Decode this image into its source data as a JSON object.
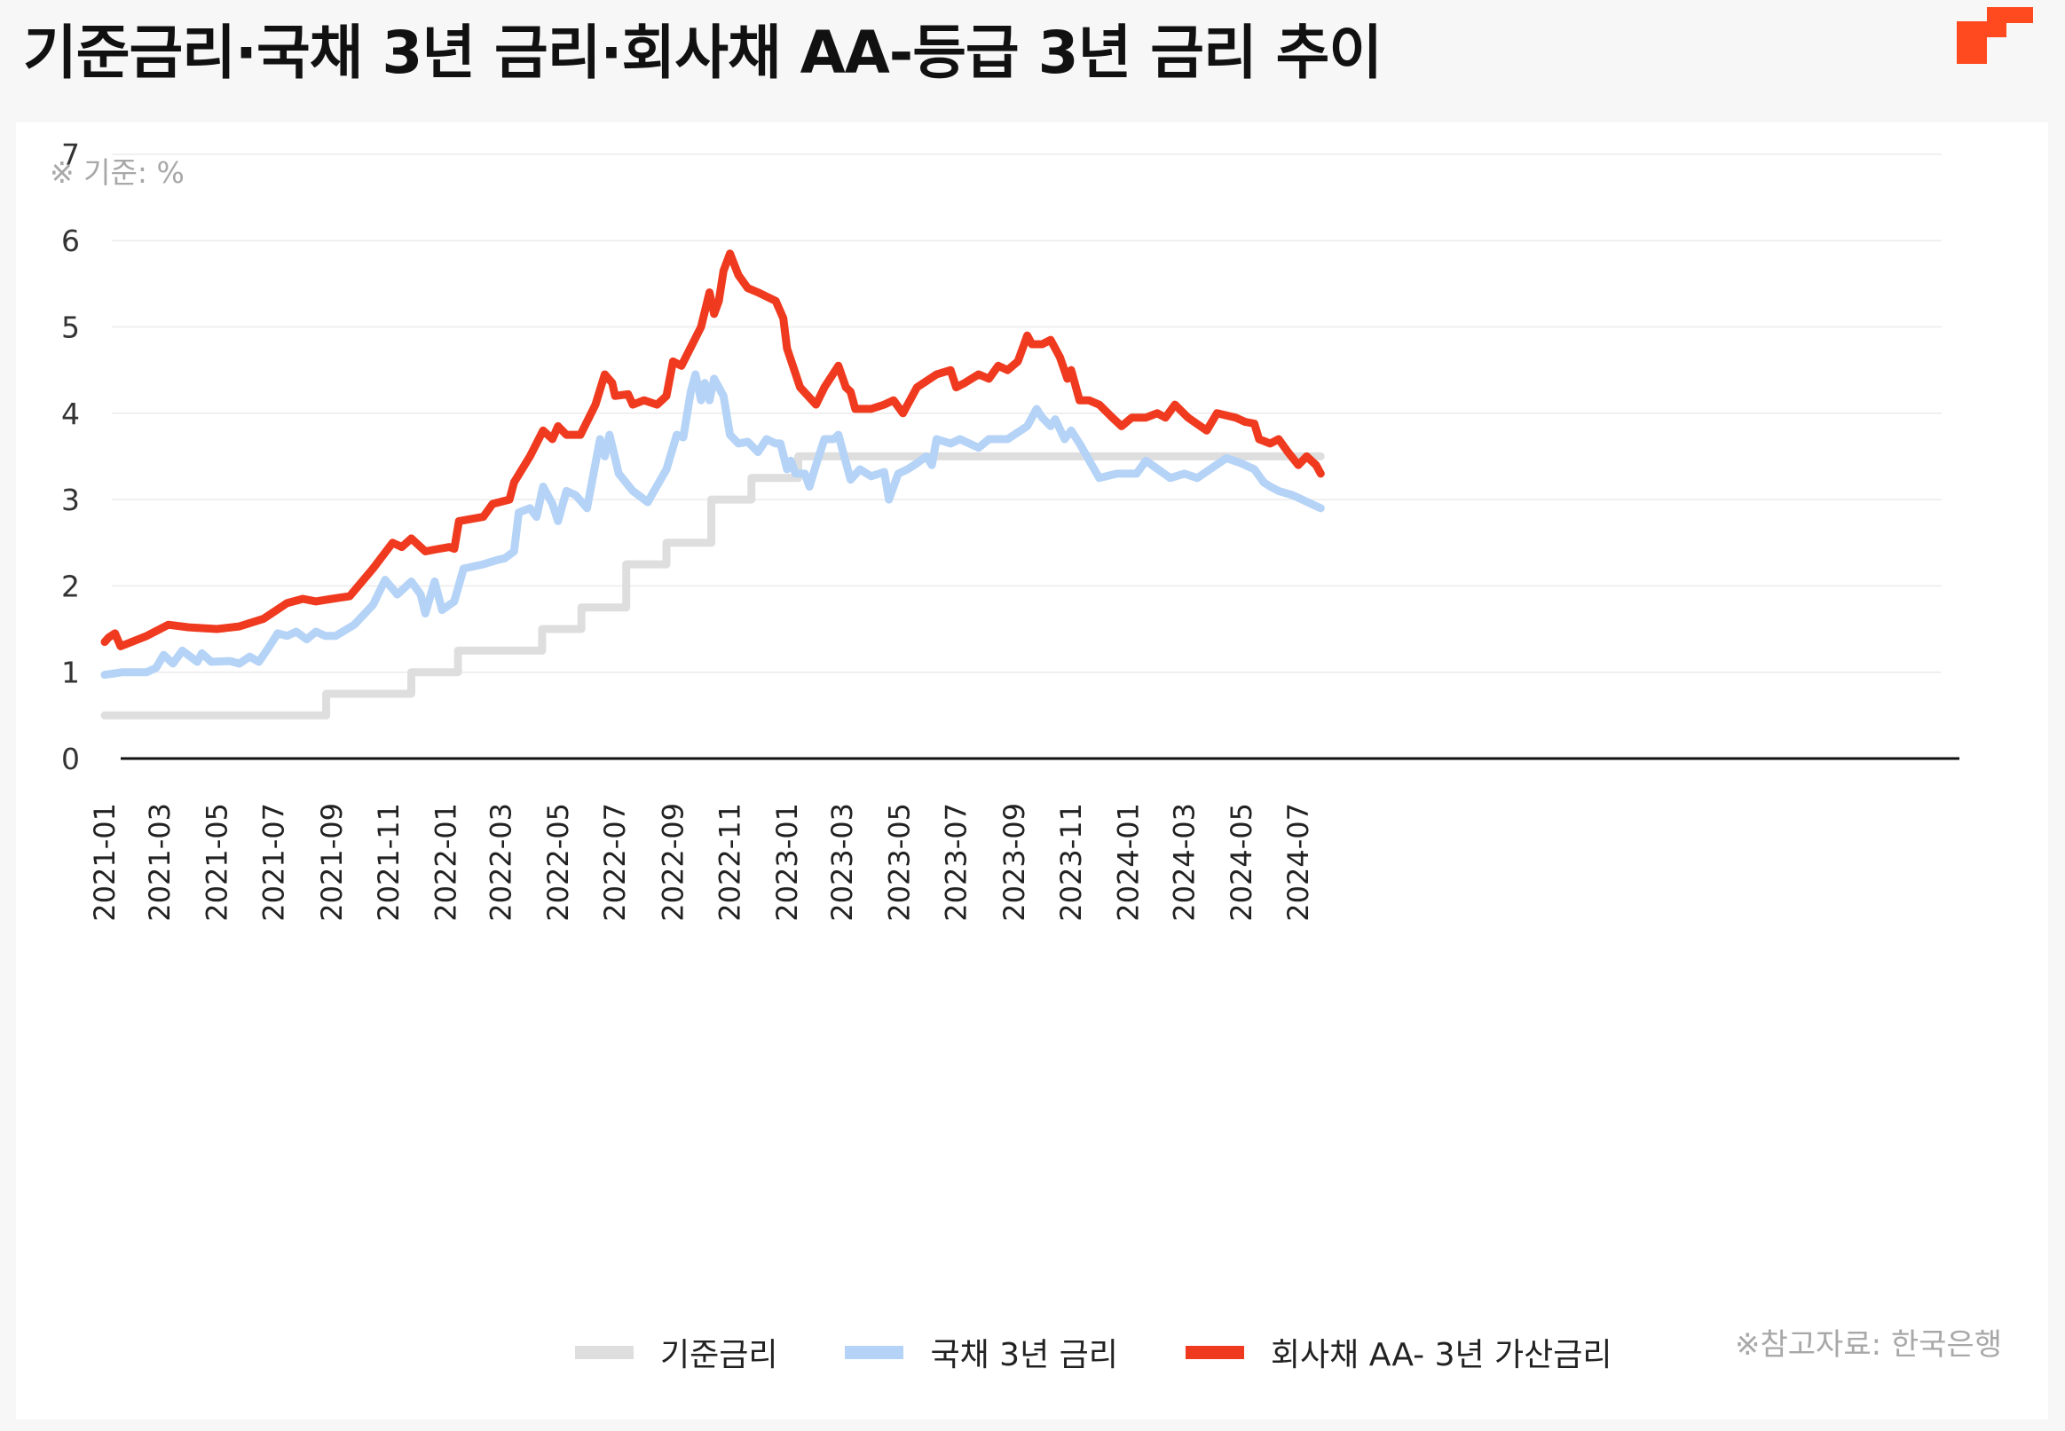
{
  "header": {
    "title": "기준금리·국채 3년 금리·회사채 AA-등급 3년 금리 추이"
  },
  "unit_note": "※ 기준: %",
  "source_note": "※참고자료: 한국은행",
  "colors": {
    "base": "#dedede",
    "gov": "#b5d3f6",
    "corp": "#ef3a1f",
    "accent": "#ff4a1f"
  },
  "chart_data": {
    "type": "line",
    "title": "기준금리·국채 3년 금리·회사채 AA-등급 3년 금리 추이",
    "ylim": [
      0,
      7
    ],
    "y_ticks": [
      0,
      1,
      2,
      3,
      4,
      5,
      6,
      7
    ],
    "xlim": [
      "2021-01",
      "2024-07"
    ],
    "x_tick_labels": [
      "2021-01",
      "2021-03",
      "2021-05",
      "2021-07",
      "2021-09",
      "2021-11",
      "2022-01",
      "2022-03",
      "2022-05",
      "2022-07",
      "2022-09",
      "2022-11",
      "2023-01",
      "2023-03",
      "2023-05",
      "2023-07",
      "2023-09",
      "2023-11",
      "2024-01",
      "2024-03",
      "2024-05",
      "2024-07"
    ],
    "grid": true,
    "legend_position": "bottom",
    "series": [
      {
        "name": "기준금리",
        "color_key": "base",
        "points": [
          [
            "2021-01-01",
            0.5
          ],
          [
            "2021-08-26",
            0.5
          ],
          [
            "2021-08-26",
            0.75
          ],
          [
            "2021-11-25",
            0.75
          ],
          [
            "2021-11-25",
            1.0
          ],
          [
            "2022-01-14",
            1.0
          ],
          [
            "2022-01-14",
            1.25
          ],
          [
            "2022-04-14",
            1.25
          ],
          [
            "2022-04-14",
            1.5
          ],
          [
            "2022-05-26",
            1.5
          ],
          [
            "2022-05-26",
            1.75
          ],
          [
            "2022-07-13",
            1.75
          ],
          [
            "2022-07-13",
            2.25
          ],
          [
            "2022-08-25",
            2.25
          ],
          [
            "2022-08-25",
            2.5
          ],
          [
            "2022-10-12",
            2.5
          ],
          [
            "2022-10-12",
            3.0
          ],
          [
            "2022-11-24",
            3.0
          ],
          [
            "2022-11-24",
            3.25
          ],
          [
            "2023-01-13",
            3.25
          ],
          [
            "2023-01-13",
            3.5
          ],
          [
            "2024-07-25",
            3.5
          ]
        ]
      },
      {
        "name": "국채 3년 금리",
        "color_key": "gov",
        "points": [
          [
            "2021-01-01",
            0.97
          ],
          [
            "2021-01-20",
            1.0
          ],
          [
            "2021-02-15",
            1.0
          ],
          [
            "2021-02-25",
            1.05
          ],
          [
            "2021-03-05",
            1.2
          ],
          [
            "2021-03-15",
            1.1
          ],
          [
            "2021-03-25",
            1.25
          ],
          [
            "2021-04-10",
            1.12
          ],
          [
            "2021-04-15",
            1.22
          ],
          [
            "2021-04-25",
            1.12
          ],
          [
            "2021-05-15",
            1.13
          ],
          [
            "2021-05-25",
            1.1
          ],
          [
            "2021-06-05",
            1.18
          ],
          [
            "2021-06-15",
            1.12
          ],
          [
            "2021-06-25",
            1.28
          ],
          [
            "2021-07-05",
            1.45
          ],
          [
            "2021-07-15",
            1.42
          ],
          [
            "2021-07-25",
            1.47
          ],
          [
            "2021-08-05",
            1.38
          ],
          [
            "2021-08-15",
            1.47
          ],
          [
            "2021-08-25",
            1.42
          ],
          [
            "2021-09-05",
            1.42
          ],
          [
            "2021-09-25",
            1.55
          ],
          [
            "2021-10-15",
            1.78
          ],
          [
            "2021-10-28",
            2.07
          ],
          [
            "2021-11-10",
            1.9
          ],
          [
            "2021-11-25",
            2.05
          ],
          [
            "2021-12-05",
            1.9
          ],
          [
            "2021-12-10",
            1.68
          ],
          [
            "2021-12-20",
            2.05
          ],
          [
            "2021-12-28",
            1.72
          ],
          [
            "2022-01-10",
            1.82
          ],
          [
            "2022-01-20",
            2.2
          ],
          [
            "2022-02-10",
            2.25
          ],
          [
            "2022-02-25",
            2.3
          ],
          [
            "2022-03-05",
            2.32
          ],
          [
            "2022-03-15",
            2.4
          ],
          [
            "2022-03-20",
            2.85
          ],
          [
            "2022-04-01",
            2.9
          ],
          [
            "2022-04-08",
            2.8
          ],
          [
            "2022-04-15",
            3.15
          ],
          [
            "2022-04-25",
            2.95
          ],
          [
            "2022-05-01",
            2.75
          ],
          [
            "2022-05-10",
            3.1
          ],
          [
            "2022-05-20",
            3.05
          ],
          [
            "2022-06-01",
            2.9
          ],
          [
            "2022-06-15",
            3.7
          ],
          [
            "2022-06-20",
            3.5
          ],
          [
            "2022-06-25",
            3.75
          ],
          [
            "2022-07-05",
            3.3
          ],
          [
            "2022-07-20",
            3.1
          ],
          [
            "2022-08-05",
            2.97
          ],
          [
            "2022-08-25",
            3.35
          ],
          [
            "2022-09-05",
            3.75
          ],
          [
            "2022-09-12",
            3.72
          ],
          [
            "2022-09-20",
            4.25
          ],
          [
            "2022-09-25",
            4.45
          ],
          [
            "2022-10-01",
            4.15
          ],
          [
            "2022-10-05",
            4.35
          ],
          [
            "2022-10-10",
            4.15
          ],
          [
            "2022-10-15",
            4.4
          ],
          [
            "2022-10-25",
            4.2
          ],
          [
            "2022-11-01",
            3.75
          ],
          [
            "2022-11-10",
            3.65
          ],
          [
            "2022-11-20",
            3.67
          ],
          [
            "2022-12-01",
            3.55
          ],
          [
            "2022-12-10",
            3.7
          ],
          [
            "2022-12-20",
            3.65
          ],
          [
            "2022-12-25",
            3.65
          ],
          [
            "2023-01-01",
            3.35
          ],
          [
            "2023-01-05",
            3.45
          ],
          [
            "2023-01-10",
            3.3
          ],
          [
            "2023-01-20",
            3.3
          ],
          [
            "2023-01-25",
            3.15
          ],
          [
            "2023-02-01",
            3.4
          ],
          [
            "2023-02-10",
            3.7
          ],
          [
            "2023-02-20",
            3.7
          ],
          [
            "2023-02-25",
            3.75
          ],
          [
            "2023-03-10",
            3.23
          ],
          [
            "2023-03-20",
            3.35
          ],
          [
            "2023-04-01",
            3.27
          ],
          [
            "2023-04-15",
            3.32
          ],
          [
            "2023-04-20",
            3.0
          ],
          [
            "2023-04-30",
            3.3
          ],
          [
            "2023-05-10",
            3.35
          ],
          [
            "2023-05-20",
            3.42
          ],
          [
            "2023-05-30",
            3.5
          ],
          [
            "2023-06-05",
            3.4
          ],
          [
            "2023-06-10",
            3.7
          ],
          [
            "2023-06-25",
            3.65
          ],
          [
            "2023-07-05",
            3.7
          ],
          [
            "2023-07-25",
            3.6
          ],
          [
            "2023-08-05",
            3.7
          ],
          [
            "2023-08-25",
            3.7
          ],
          [
            "2023-09-01",
            3.75
          ],
          [
            "2023-09-15",
            3.85
          ],
          [
            "2023-09-25",
            4.05
          ],
          [
            "2023-10-01",
            3.95
          ],
          [
            "2023-10-10",
            3.85
          ],
          [
            "2023-10-15",
            3.93
          ],
          [
            "2023-10-25",
            3.7
          ],
          [
            "2023-11-01",
            3.8
          ],
          [
            "2023-11-10",
            3.65
          ],
          [
            "2023-12-01",
            3.25
          ],
          [
            "2023-12-20",
            3.3
          ],
          [
            "2024-01-10",
            3.3
          ],
          [
            "2024-01-20",
            3.45
          ],
          [
            "2024-02-15",
            3.25
          ],
          [
            "2024-03-01",
            3.3
          ],
          [
            "2024-03-15",
            3.25
          ],
          [
            "2024-04-15",
            3.48
          ],
          [
            "2024-05-01",
            3.42
          ],
          [
            "2024-05-15",
            3.35
          ],
          [
            "2024-05-25",
            3.2
          ],
          [
            "2024-06-01",
            3.15
          ],
          [
            "2024-06-10",
            3.1
          ],
          [
            "2024-06-25",
            3.05
          ],
          [
            "2024-07-05",
            3.0
          ],
          [
            "2024-07-15",
            2.95
          ],
          [
            "2024-07-25",
            2.9
          ]
        ]
      },
      {
        "name": "회사채 AA- 3년 가산금리",
        "color_key": "corp",
        "points": [
          [
            "2021-01-01",
            1.35
          ],
          [
            "2021-01-05",
            1.4
          ],
          [
            "2021-01-12",
            1.45
          ],
          [
            "2021-01-18",
            1.3
          ],
          [
            "2021-02-15",
            1.42
          ],
          [
            "2021-03-10",
            1.55
          ],
          [
            "2021-04-01",
            1.52
          ],
          [
            "2021-05-01",
            1.5
          ],
          [
            "2021-05-25",
            1.53
          ],
          [
            "2021-06-20",
            1.62
          ],
          [
            "2021-07-15",
            1.8
          ],
          [
            "2021-08-01",
            1.85
          ],
          [
            "2021-08-15",
            1.82
          ],
          [
            "2021-09-01",
            1.85
          ],
          [
            "2021-09-20",
            1.88
          ],
          [
            "2021-10-15",
            2.2
          ],
          [
            "2021-11-05",
            2.5
          ],
          [
            "2021-11-15",
            2.45
          ],
          [
            "2021-11-25",
            2.55
          ],
          [
            "2021-12-10",
            2.4
          ],
          [
            "2021-12-20",
            2.42
          ],
          [
            "2022-01-05",
            2.45
          ],
          [
            "2022-01-10",
            2.43
          ],
          [
            "2022-01-15",
            2.75
          ],
          [
            "2022-02-10",
            2.8
          ],
          [
            "2022-02-20",
            2.95
          ],
          [
            "2022-03-10",
            3.0
          ],
          [
            "2022-03-15",
            3.2
          ],
          [
            "2022-04-01",
            3.5
          ],
          [
            "2022-04-15",
            3.8
          ],
          [
            "2022-04-25",
            3.7
          ],
          [
            "2022-05-01",
            3.85
          ],
          [
            "2022-05-10",
            3.75
          ],
          [
            "2022-05-25",
            3.75
          ],
          [
            "2022-06-10",
            4.1
          ],
          [
            "2022-06-20",
            4.45
          ],
          [
            "2022-06-28",
            4.35
          ],
          [
            "2022-07-01",
            4.2
          ],
          [
            "2022-07-15",
            4.22
          ],
          [
            "2022-07-20",
            4.1
          ],
          [
            "2022-08-01",
            4.15
          ],
          [
            "2022-08-15",
            4.1
          ],
          [
            "2022-08-25",
            4.2
          ],
          [
            "2022-09-01",
            4.6
          ],
          [
            "2022-09-10",
            4.55
          ],
          [
            "2022-10-01",
            5.0
          ],
          [
            "2022-10-10",
            5.4
          ],
          [
            "2022-10-15",
            5.15
          ],
          [
            "2022-10-20",
            5.3
          ],
          [
            "2022-10-25",
            5.65
          ],
          [
            "2022-11-01",
            5.85
          ],
          [
            "2022-11-10",
            5.6
          ],
          [
            "2022-11-20",
            5.45
          ],
          [
            "2022-12-01",
            5.4
          ],
          [
            "2022-12-20",
            5.3
          ],
          [
            "2022-12-28",
            5.1
          ],
          [
            "2023-01-01",
            4.75
          ],
          [
            "2023-01-15",
            4.3
          ],
          [
            "2023-02-01",
            4.1
          ],
          [
            "2023-02-10",
            4.3
          ],
          [
            "2023-02-25",
            4.55
          ],
          [
            "2023-03-05",
            4.3
          ],
          [
            "2023-03-10",
            4.25
          ],
          [
            "2023-03-15",
            4.05
          ],
          [
            "2023-04-01",
            4.05
          ],
          [
            "2023-04-15",
            4.1
          ],
          [
            "2023-04-25",
            4.15
          ],
          [
            "2023-05-05",
            4.0
          ],
          [
            "2023-05-20",
            4.3
          ],
          [
            "2023-06-10",
            4.45
          ],
          [
            "2023-06-25",
            4.5
          ],
          [
            "2023-07-01",
            4.3
          ],
          [
            "2023-07-10",
            4.35
          ],
          [
            "2023-07-25",
            4.45
          ],
          [
            "2023-08-05",
            4.4
          ],
          [
            "2023-08-15",
            4.55
          ],
          [
            "2023-08-25",
            4.5
          ],
          [
            "2023-09-05",
            4.6
          ],
          [
            "2023-09-15",
            4.9
          ],
          [
            "2023-09-20",
            4.8
          ],
          [
            "2023-10-01",
            4.8
          ],
          [
            "2023-10-10",
            4.85
          ],
          [
            "2023-10-20",
            4.65
          ],
          [
            "2023-10-28",
            4.4
          ],
          [
            "2023-11-01",
            4.5
          ],
          [
            "2023-11-10",
            4.15
          ],
          [
            "2023-11-20",
            4.15
          ],
          [
            "2023-12-01",
            4.1
          ],
          [
            "2023-12-15",
            3.95
          ],
          [
            "2023-12-25",
            3.85
          ],
          [
            "2024-01-05",
            3.95
          ],
          [
            "2024-01-20",
            3.95
          ],
          [
            "2024-02-01",
            4.0
          ],
          [
            "2024-02-10",
            3.95
          ],
          [
            "2024-02-20",
            4.1
          ],
          [
            "2024-03-05",
            3.95
          ],
          [
            "2024-03-25",
            3.8
          ],
          [
            "2024-04-05",
            4.0
          ],
          [
            "2024-04-25",
            3.95
          ],
          [
            "2024-05-05",
            3.9
          ],
          [
            "2024-05-15",
            3.88
          ],
          [
            "2024-05-20",
            3.7
          ],
          [
            "2024-06-01",
            3.65
          ],
          [
            "2024-06-10",
            3.7
          ],
          [
            "2024-06-20",
            3.55
          ],
          [
            "2024-07-01",
            3.4
          ],
          [
            "2024-07-10",
            3.5
          ],
          [
            "2024-07-20",
            3.4
          ],
          [
            "2024-07-25",
            3.3
          ]
        ]
      }
    ]
  }
}
